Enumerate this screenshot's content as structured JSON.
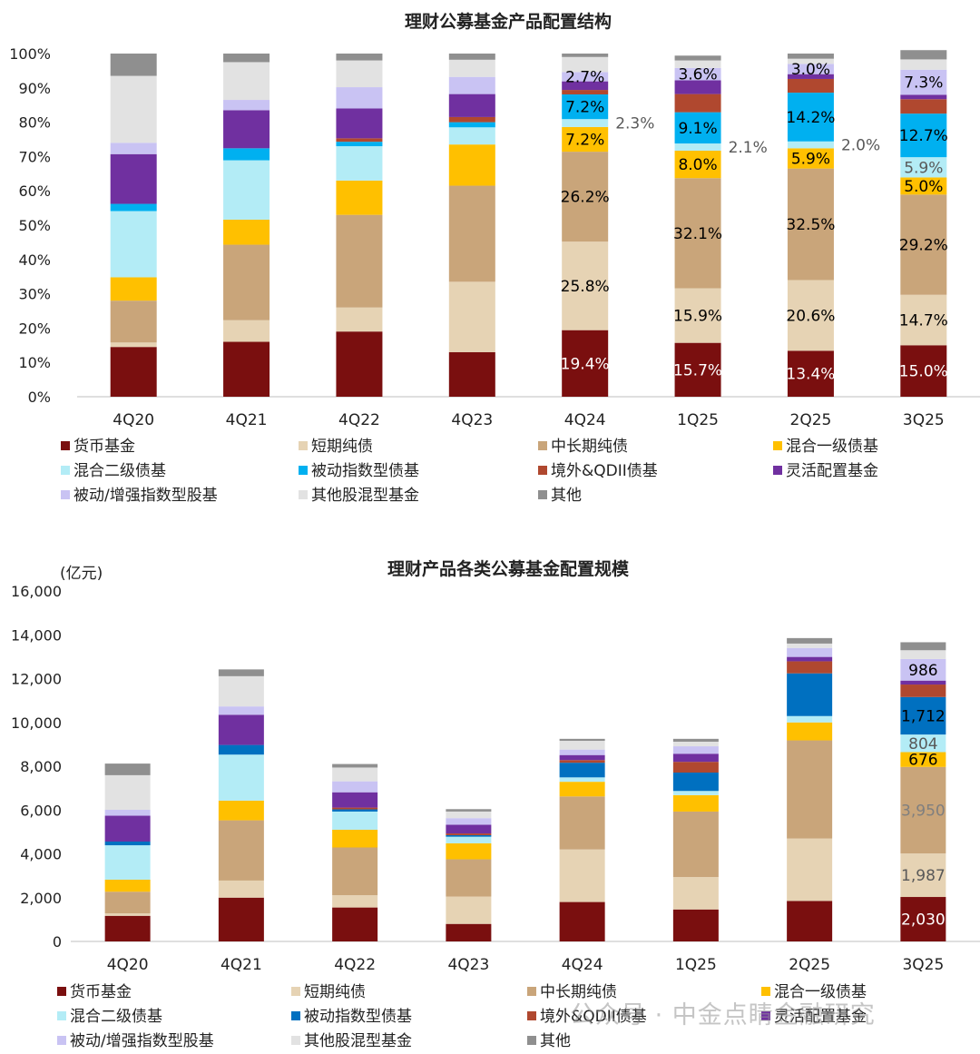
{
  "colors": {
    "货币基金": "#7a0f0f",
    "短期纯债": "#e6d3b4",
    "中长期纯债": "#c9a57a",
    "混合一级债基": "#ffc000",
    "混合二级债基": "#b3ecf6",
    "被动指数型债基_top": "#00b0f0",
    "被动指数型债基_bottom": "#0070c0",
    "境外&QDII债基": "#b0482f",
    "灵活配置基金": "#7030a0",
    "被动/增强指数型股基": "#c9c3f3",
    "其他股混型基金": "#e2e2e2",
    "其他": "#8f8f8f"
  },
  "chart_data": [
    {
      "type": "stacked_bar_percent",
      "title": "理财公募基金产品配置结构",
      "categories": [
        "4Q20",
        "4Q21",
        "4Q22",
        "4Q23",
        "4Q24",
        "1Q25",
        "2Q25",
        "3Q25"
      ],
      "y_ticks": [
        "0%",
        "10%",
        "20%",
        "30%",
        "40%",
        "50%",
        "60%",
        "70%",
        "80%",
        "90%",
        "100%"
      ],
      "ylim": [
        0,
        100
      ],
      "series": [
        {
          "name": "货币基金",
          "values": [
            14.5,
            16.0,
            19.0,
            13.0,
            19.4,
            15.7,
            13.4,
            15.0
          ]
        },
        {
          "name": "短期纯债",
          "values": [
            1.3,
            6.3,
            7.0,
            20.5,
            25.8,
            15.9,
            20.6,
            14.7
          ]
        },
        {
          "name": "中长期纯债",
          "values": [
            12.2,
            22.0,
            27.0,
            28.0,
            26.2,
            32.1,
            32.5,
            29.2
          ]
        },
        {
          "name": "混合一级债基",
          "values": [
            6.8,
            7.3,
            10.0,
            12.0,
            7.2,
            8.0,
            5.9,
            5.0
          ]
        },
        {
          "name": "混合二级债基",
          "values": [
            19.3,
            17.3,
            10.0,
            5.0,
            2.3,
            2.1,
            2.0,
            5.9
          ]
        },
        {
          "name": "被动指数型债基",
          "values": [
            2.1,
            3.5,
            1.3,
            1.5,
            7.2,
            9.1,
            14.2,
            12.7
          ]
        },
        {
          "name": "境外&QDII债基",
          "values": [
            0.0,
            0.0,
            1.0,
            1.5,
            1.3,
            5.3,
            4.0,
            4.2
          ]
        },
        {
          "name": "灵活配置基金",
          "values": [
            14.5,
            11.1,
            8.7,
            6.7,
            2.5,
            4.0,
            1.4,
            1.3
          ]
        },
        {
          "name": "被动/增强指数型股基",
          "values": [
            3.3,
            3.0,
            6.2,
            5.0,
            2.7,
            3.6,
            3.0,
            7.3
          ]
        },
        {
          "name": "其他股混型基金",
          "values": [
            19.5,
            11.0,
            7.8,
            5.0,
            4.4,
            2.2,
            1.5,
            3.0
          ]
        },
        {
          "name": "其他",
          "values": [
            6.5,
            2.5,
            2.0,
            1.8,
            1.0,
            1.4,
            1.5,
            2.7
          ]
        }
      ],
      "data_labels": [
        {
          "series": "货币基金",
          "category": "4Q24",
          "text": "19.4%"
        },
        {
          "series": "短期纯债",
          "category": "4Q24",
          "text": "25.8%"
        },
        {
          "series": "中长期纯债",
          "category": "4Q24",
          "text": "26.2%"
        },
        {
          "series": "混合一级债基",
          "category": "4Q24",
          "text": "7.2%"
        },
        {
          "series": "混合二级债基",
          "category": "4Q24",
          "text": "2.3%"
        },
        {
          "series": "被动指数型债基",
          "category": "4Q24",
          "text": "7.2%"
        },
        {
          "series": "被动/增强指数型股基",
          "category": "4Q24",
          "text": "2.7%"
        },
        {
          "series": "货币基金",
          "category": "1Q25",
          "text": "15.7%"
        },
        {
          "series": "短期纯债",
          "category": "1Q25",
          "text": "15.9%"
        },
        {
          "series": "中长期纯债",
          "category": "1Q25",
          "text": "32.1%"
        },
        {
          "series": "混合一级债基",
          "category": "1Q25",
          "text": "8.0%"
        },
        {
          "series": "混合二级债基",
          "category": "1Q25",
          "text": "2.1%"
        },
        {
          "series": "被动指数型债基",
          "category": "1Q25",
          "text": "9.1%"
        },
        {
          "series": "被动/增强指数型股基",
          "category": "1Q25",
          "text": "3.6%"
        },
        {
          "series": "货币基金",
          "category": "2Q25",
          "text": "13.4%"
        },
        {
          "series": "短期纯债",
          "category": "2Q25",
          "text": "20.6%"
        },
        {
          "series": "中长期纯债",
          "category": "2Q25",
          "text": "32.5%"
        },
        {
          "series": "混合一级债基",
          "category": "2Q25",
          "text": "5.9%"
        },
        {
          "series": "混合二级债基",
          "category": "2Q25",
          "text": "2.0%"
        },
        {
          "series": "被动指数型债基",
          "category": "2Q25",
          "text": "14.2%"
        },
        {
          "series": "被动/增强指数型股基",
          "category": "2Q25",
          "text": "3.0%"
        },
        {
          "series": "货币基金",
          "category": "3Q25",
          "text": "15.0%"
        },
        {
          "series": "短期纯债",
          "category": "3Q25",
          "text": "14.7%"
        },
        {
          "series": "中长期纯债",
          "category": "3Q25",
          "text": "29.2%"
        },
        {
          "series": "混合一级债基",
          "category": "3Q25",
          "text": "5.0%"
        },
        {
          "series": "混合二级债基",
          "category": "3Q25",
          "text": "5.9%"
        },
        {
          "series": "被动指数型债基",
          "category": "3Q25",
          "text": "12.7%"
        },
        {
          "series": "被动/增强指数型股基",
          "category": "3Q25",
          "text": "7.3%"
        }
      ],
      "legend": [
        "货币基金",
        "短期纯债",
        "中长期纯债",
        "混合一级债基",
        "混合二级债基",
        "被动指数型债基",
        "境外&QDII债基",
        "灵活配置基金",
        "被动/增强指数型股基",
        "其他股混型基金",
        "其他"
      ]
    },
    {
      "type": "stacked_bar",
      "title": "理财产品各类公募基金配置规模",
      "unit_label": "(亿元)",
      "categories": [
        "4Q20",
        "4Q21",
        "4Q22",
        "4Q23",
        "4Q24",
        "1Q25",
        "2Q25",
        "3Q25"
      ],
      "y_ticks": [
        "0",
        "2,000",
        "4,000",
        "6,000",
        "8,000",
        "10,000",
        "12,000",
        "14,000",
        "16,000"
      ],
      "ylim": [
        0,
        16000
      ],
      "series": [
        {
          "name": "货币基金",
          "values": [
            1170,
            2000,
            1550,
            800,
            1800,
            1460,
            1850,
            2030
          ]
        },
        {
          "name": "短期纯债",
          "values": [
            110,
            780,
            560,
            1250,
            2400,
            1480,
            2850,
            1987
          ]
        },
        {
          "name": "中长期纯债",
          "values": [
            990,
            2750,
            2180,
            1700,
            2420,
            2990,
            4480,
            3950
          ]
        },
        {
          "name": "混合一级债基",
          "values": [
            550,
            900,
            810,
            730,
            670,
            750,
            820,
            676
          ]
        },
        {
          "name": "混合二级债基",
          "values": [
            1570,
            2100,
            830,
            300,
            200,
            190,
            290,
            804
          ]
        },
        {
          "name": "被动指数型债基",
          "values": [
            170,
            440,
            100,
            70,
            670,
            840,
            1950,
            1712
          ]
        },
        {
          "name": "境外&QDII债基",
          "values": [
            0,
            0,
            80,
            80,
            120,
            490,
            550,
            570
          ]
        },
        {
          "name": "灵活配置基金",
          "values": [
            1180,
            1380,
            700,
            400,
            230,
            370,
            200,
            180
          ]
        },
        {
          "name": "被动/增强指数型股基",
          "values": [
            270,
            380,
            500,
            300,
            250,
            340,
            410,
            986
          ]
        },
        {
          "name": "其他股混型基金",
          "values": [
            1580,
            1380,
            630,
            300,
            400,
            210,
            200,
            400
          ]
        },
        {
          "name": "其他",
          "values": [
            530,
            310,
            160,
            110,
            90,
            130,
            250,
            365
          ]
        }
      ],
      "data_labels": [
        {
          "series": "货币基金",
          "category": "3Q25",
          "text": "2,030"
        },
        {
          "series": "短期纯债",
          "category": "3Q25",
          "text": "1,987"
        },
        {
          "series": "中长期纯债",
          "category": "3Q25",
          "text": "3,950"
        },
        {
          "series": "混合一级债基",
          "category": "3Q25",
          "text": "676"
        },
        {
          "series": "混合二级债基",
          "category": "3Q25",
          "text": "804"
        },
        {
          "series": "被动指数型债基",
          "category": "3Q25",
          "text": "1,712"
        },
        {
          "series": "被动/增强指数型股基",
          "category": "3Q25",
          "text": "986"
        }
      ],
      "legend": [
        "货币基金",
        "短期纯债",
        "中长期纯债",
        "混合一级债基",
        "混合二级债基",
        "被动指数型债基",
        "境外&QDII债基",
        "灵活配置基金",
        "被动/增强指数型股基",
        "其他股混型基金",
        "其他"
      ]
    }
  ],
  "watermark": "公众号 · 中金点睛金融研究"
}
